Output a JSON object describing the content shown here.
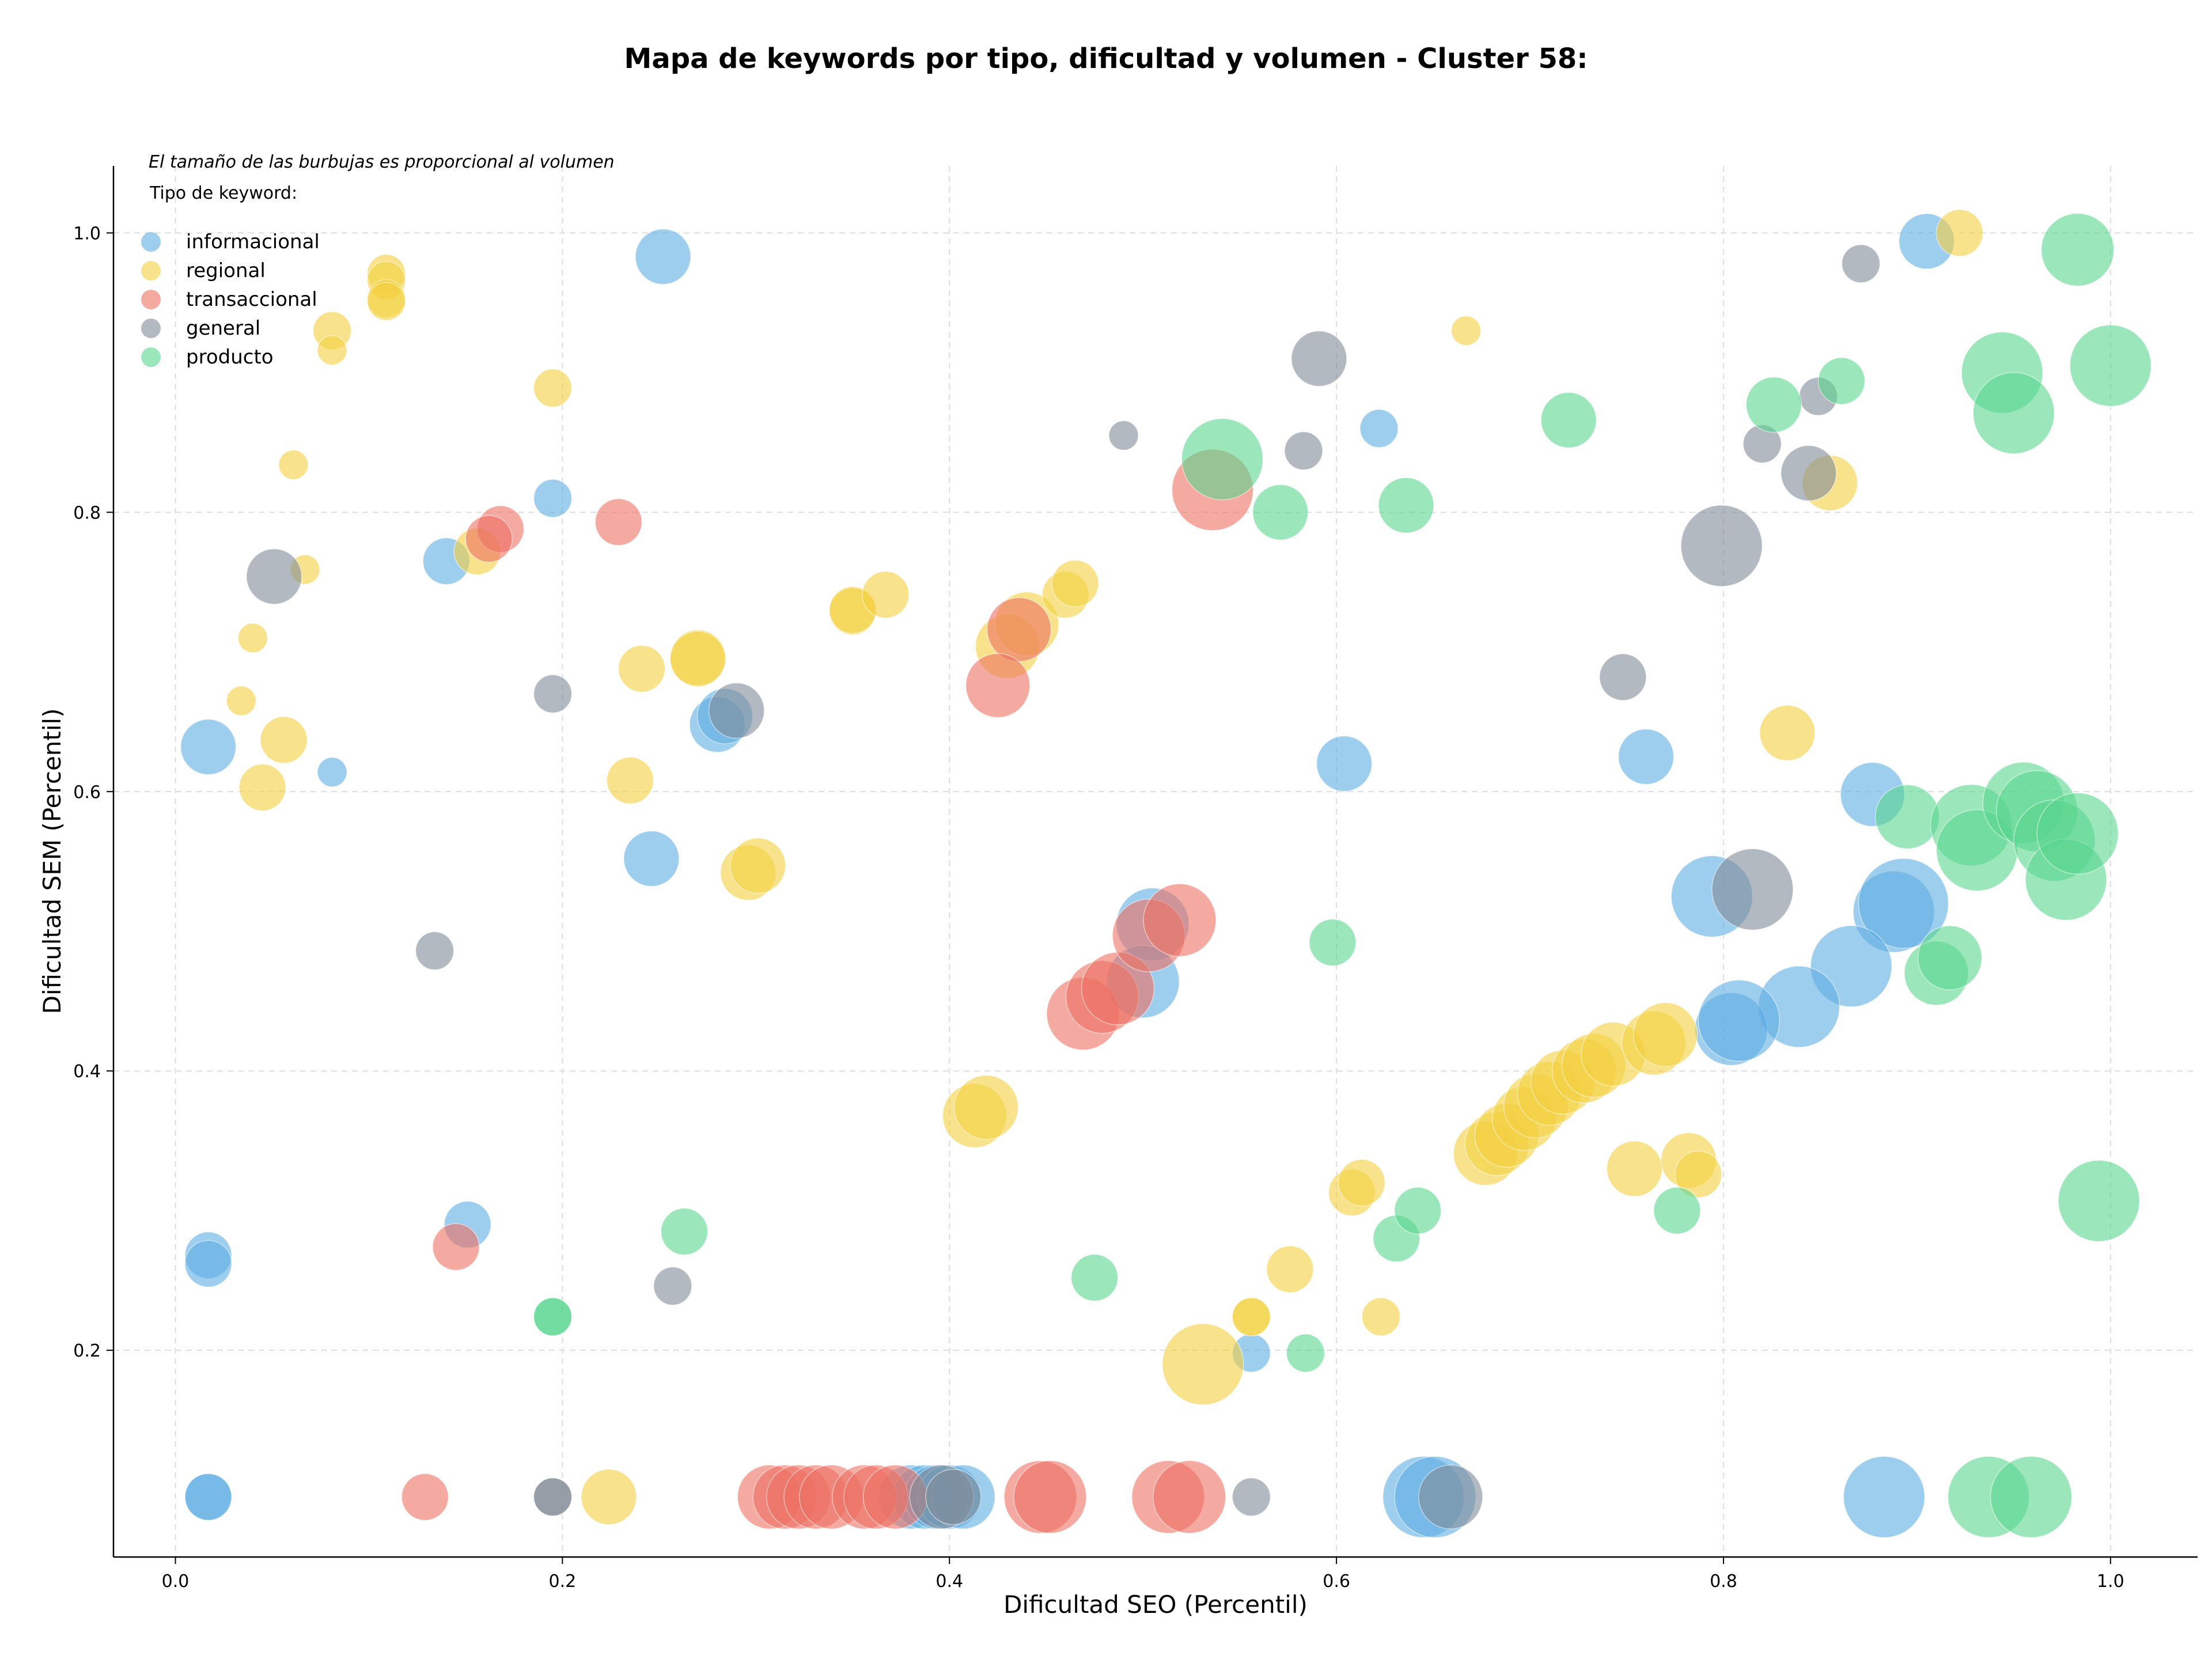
{
  "chart_data": {
    "type": "scatter",
    "title": "Mapa de keywords por tipo, dificultad y volumen - Cluster 58:",
    "xlabel": "Dificultad SEO (Percentil)",
    "ylabel": "Dificultad SEM (Percentil)",
    "xlim": [
      -0.032,
      1.045
    ],
    "ylim": [
      0.052,
      1.048
    ],
    "xticks": [
      0.0,
      0.2,
      0.4,
      0.6,
      0.8,
      1.0
    ],
    "yticks": [
      0.2,
      0.4,
      0.6,
      0.8,
      1.0
    ],
    "tick_labels_x": [
      "0.0",
      "0.2",
      "0.4",
      "0.6",
      "0.8",
      "1.0"
    ],
    "tick_labels_y": [
      "0.2",
      "0.4",
      "0.6",
      "0.8",
      "1.0"
    ],
    "grid": true,
    "note": "El tamaño de las burbujas es proporcional al volumen",
    "legend": {
      "title": "Tipo de keyword:",
      "placement": "top-left"
    },
    "series": [
      {
        "name": "informacional",
        "color": "#5DADE2",
        "points": [
          {
            "x": 0.252,
            "y": 0.983,
            "s": 4
          },
          {
            "x": 0.905,
            "y": 0.994,
            "s": 4
          },
          {
            "x": 0.622,
            "y": 0.86,
            "s": 2
          },
          {
            "x": 0.195,
            "y": 0.81,
            "s": 2
          },
          {
            "x": 0.14,
            "y": 0.765,
            "s": 3
          },
          {
            "x": 0.017,
            "y": 0.632,
            "s": 4
          },
          {
            "x": 0.081,
            "y": 0.614,
            "s": 1
          },
          {
            "x": 0.28,
            "y": 0.648,
            "s": 4
          },
          {
            "x": 0.284,
            "y": 0.654,
            "s": 4
          },
          {
            "x": 0.604,
            "y": 0.62,
            "s": 4
          },
          {
            "x": 0.76,
            "y": 0.625,
            "s": 4
          },
          {
            "x": 0.877,
            "y": 0.598,
            "s": 5
          },
          {
            "x": 0.246,
            "y": 0.552,
            "s": 4
          },
          {
            "x": 0.794,
            "y": 0.525,
            "s": 7
          },
          {
            "x": 0.888,
            "y": 0.514,
            "s": 7
          },
          {
            "x": 0.893,
            "y": 0.52,
            "s": 8
          },
          {
            "x": 0.866,
            "y": 0.475,
            "s": 7
          },
          {
            "x": 0.839,
            "y": 0.446,
            "s": 7
          },
          {
            "x": 0.804,
            "y": 0.43,
            "s": 6
          },
          {
            "x": 0.808,
            "y": 0.436,
            "s": 7
          },
          {
            "x": 0.505,
            "y": 0.505,
            "s": 6
          },
          {
            "x": 0.5,
            "y": 0.464,
            "s": 6
          },
          {
            "x": 0.017,
            "y": 0.268,
            "s": 3
          },
          {
            "x": 0.017,
            "y": 0.262,
            "s": 3
          },
          {
            "x": 0.151,
            "y": 0.29,
            "s": 3
          },
          {
            "x": 0.556,
            "y": 0.198,
            "s": 2
          },
          {
            "x": 0.017,
            "y": 0.095,
            "s": 3
          },
          {
            "x": 0.017,
            "y": 0.095,
            "s": 3
          },
          {
            "x": 0.38,
            "y": 0.095,
            "s": 5
          },
          {
            "x": 0.387,
            "y": 0.095,
            "s": 5
          },
          {
            "x": 0.393,
            "y": 0.095,
            "s": 5
          },
          {
            "x": 0.4,
            "y": 0.095,
            "s": 5
          },
          {
            "x": 0.407,
            "y": 0.095,
            "s": 5
          },
          {
            "x": 0.645,
            "y": 0.095,
            "s": 7
          },
          {
            "x": 0.651,
            "y": 0.095,
            "s": 7
          },
          {
            "x": 0.883,
            "y": 0.095,
            "s": 7
          }
        ]
      },
      {
        "name": "regional",
        "color": "#F4D03F",
        "points": [
          {
            "x": 0.109,
            "y": 0.971,
            "s": 2
          },
          {
            "x": 0.109,
            "y": 0.966,
            "s": 2
          },
          {
            "x": 0.109,
            "y": 0.953,
            "s": 2
          },
          {
            "x": 0.109,
            "y": 0.951,
            "s": 2
          },
          {
            "x": 0.081,
            "y": 0.93,
            "s": 2
          },
          {
            "x": 0.081,
            "y": 0.916,
            "s": 1
          },
          {
            "x": 0.195,
            "y": 0.889,
            "s": 2
          },
          {
            "x": 0.061,
            "y": 0.834,
            "s": 1
          },
          {
            "x": 0.067,
            "y": 0.759,
            "s": 1
          },
          {
            "x": 0.04,
            "y": 0.71,
            "s": 1
          },
          {
            "x": 0.034,
            "y": 0.665,
            "s": 1
          },
          {
            "x": 0.056,
            "y": 0.637,
            "s": 3
          },
          {
            "x": 0.045,
            "y": 0.603,
            "s": 3
          },
          {
            "x": 0.156,
            "y": 0.772,
            "s": 3
          },
          {
            "x": 0.241,
            "y": 0.688,
            "s": 3
          },
          {
            "x": 0.235,
            "y": 0.608,
            "s": 3
          },
          {
            "x": 0.27,
            "y": 0.696,
            "s": 4
          },
          {
            "x": 0.27,
            "y": 0.695,
            "s": 4
          },
          {
            "x": 0.35,
            "y": 0.729,
            "s": 3
          },
          {
            "x": 0.35,
            "y": 0.73,
            "s": 3
          },
          {
            "x": 0.367,
            "y": 0.741,
            "s": 3
          },
          {
            "x": 0.296,
            "y": 0.542,
            "s": 4
          },
          {
            "x": 0.301,
            "y": 0.547,
            "s": 4
          },
          {
            "x": 0.43,
            "y": 0.704,
            "s": 5
          },
          {
            "x": 0.44,
            "y": 0.72,
            "s": 5
          },
          {
            "x": 0.46,
            "y": 0.741,
            "s": 3
          },
          {
            "x": 0.465,
            "y": 0.749,
            "s": 3
          },
          {
            "x": 0.667,
            "y": 0.93,
            "s": 1
          },
          {
            "x": 0.922,
            "y": 1.0,
            "s": 3
          },
          {
            "x": 0.855,
            "y": 0.821,
            "s": 4
          },
          {
            "x": 0.833,
            "y": 0.642,
            "s": 4
          },
          {
            "x": 0.413,
            "y": 0.368,
            "s": 5
          },
          {
            "x": 0.419,
            "y": 0.374,
            "s": 5
          },
          {
            "x": 0.224,
            "y": 0.095,
            "s": 4
          },
          {
            "x": 0.531,
            "y": 0.19,
            "s": 7
          },
          {
            "x": 0.556,
            "y": 0.224,
            "s": 2
          },
          {
            "x": 0.556,
            "y": 0.224,
            "s": 2
          },
          {
            "x": 0.576,
            "y": 0.258,
            "s": 3
          },
          {
            "x": 0.608,
            "y": 0.313,
            "s": 3
          },
          {
            "x": 0.613,
            "y": 0.32,
            "s": 3
          },
          {
            "x": 0.623,
            "y": 0.224,
            "s": 2
          },
          {
            "x": 0.677,
            "y": 0.341,
            "s": 5
          },
          {
            "x": 0.683,
            "y": 0.348,
            "s": 5
          },
          {
            "x": 0.688,
            "y": 0.354,
            "s": 5
          },
          {
            "x": 0.697,
            "y": 0.366,
            "s": 5
          },
          {
            "x": 0.703,
            "y": 0.375,
            "s": 5
          },
          {
            "x": 0.71,
            "y": 0.384,
            "s": 5
          },
          {
            "x": 0.717,
            "y": 0.392,
            "s": 5
          },
          {
            "x": 0.728,
            "y": 0.4,
            "s": 5
          },
          {
            "x": 0.733,
            "y": 0.404,
            "s": 5
          },
          {
            "x": 0.743,
            "y": 0.412,
            "s": 5
          },
          {
            "x": 0.754,
            "y": 0.33,
            "s": 4
          },
          {
            "x": 0.764,
            "y": 0.42,
            "s": 5
          },
          {
            "x": 0.77,
            "y": 0.426,
            "s": 5
          },
          {
            "x": 0.782,
            "y": 0.336,
            "s": 4
          },
          {
            "x": 0.787,
            "y": 0.326,
            "s": 3
          }
        ]
      },
      {
        "name": "transaccional",
        "color": "#EC7063",
        "points": [
          {
            "x": 0.168,
            "y": 0.788,
            "s": 3
          },
          {
            "x": 0.162,
            "y": 0.781,
            "s": 3
          },
          {
            "x": 0.229,
            "y": 0.793,
            "s": 3
          },
          {
            "x": 0.436,
            "y": 0.716,
            "s": 5
          },
          {
            "x": 0.425,
            "y": 0.676,
            "s": 5
          },
          {
            "x": 0.536,
            "y": 0.816,
            "s": 7
          },
          {
            "x": 0.469,
            "y": 0.441,
            "s": 6
          },
          {
            "x": 0.479,
            "y": 0.453,
            "s": 6
          },
          {
            "x": 0.487,
            "y": 0.459,
            "s": 6
          },
          {
            "x": 0.503,
            "y": 0.497,
            "s": 6
          },
          {
            "x": 0.519,
            "y": 0.508,
            "s": 6
          },
          {
            "x": 0.145,
            "y": 0.274,
            "s": 3
          },
          {
            "x": 0.129,
            "y": 0.095,
            "s": 3
          },
          {
            "x": 0.307,
            "y": 0.095,
            "s": 5
          },
          {
            "x": 0.315,
            "y": 0.095,
            "s": 5
          },
          {
            "x": 0.322,
            "y": 0.095,
            "s": 5
          },
          {
            "x": 0.331,
            "y": 0.095,
            "s": 5
          },
          {
            "x": 0.339,
            "y": 0.095,
            "s": 5
          },
          {
            "x": 0.356,
            "y": 0.095,
            "s": 5
          },
          {
            "x": 0.362,
            "y": 0.095,
            "s": 5
          },
          {
            "x": 0.372,
            "y": 0.095,
            "s": 5
          },
          {
            "x": 0.447,
            "y": 0.095,
            "s": 6
          },
          {
            "x": 0.452,
            "y": 0.095,
            "s": 6
          },
          {
            "x": 0.513,
            "y": 0.095,
            "s": 6
          },
          {
            "x": 0.524,
            "y": 0.095,
            "s": 6
          }
        ]
      },
      {
        "name": "general",
        "color": "#808B96",
        "points": [
          {
            "x": 0.051,
            "y": 0.754,
            "s": 4
          },
          {
            "x": 0.195,
            "y": 0.67,
            "s": 2
          },
          {
            "x": 0.134,
            "y": 0.486,
            "s": 2
          },
          {
            "x": 0.29,
            "y": 0.658,
            "s": 4
          },
          {
            "x": 0.257,
            "y": 0.246,
            "s": 2
          },
          {
            "x": 0.195,
            "y": 0.095,
            "s": 2
          },
          {
            "x": 0.195,
            "y": 0.095,
            "s": 2
          },
          {
            "x": 0.49,
            "y": 0.855,
            "s": 1
          },
          {
            "x": 0.591,
            "y": 0.91,
            "s": 4
          },
          {
            "x": 0.583,
            "y": 0.844,
            "s": 2
          },
          {
            "x": 0.871,
            "y": 0.978,
            "s": 2
          },
          {
            "x": 0.849,
            "y": 0.883,
            "s": 2
          },
          {
            "x": 0.82,
            "y": 0.849,
            "s": 2
          },
          {
            "x": 0.844,
            "y": 0.828,
            "s": 4
          },
          {
            "x": 0.799,
            "y": 0.776,
            "s": 7
          },
          {
            "x": 0.748,
            "y": 0.682,
            "s": 3
          },
          {
            "x": 0.815,
            "y": 0.53,
            "s": 7
          },
          {
            "x": 0.396,
            "y": 0.095,
            "s": 5
          },
          {
            "x": 0.402,
            "y": 0.095,
            "s": 4
          },
          {
            "x": 0.556,
            "y": 0.095,
            "s": 2
          },
          {
            "x": 0.659,
            "y": 0.095,
            "s": 5
          }
        ]
      },
      {
        "name": "producto",
        "color": "#58D68D",
        "points": [
          {
            "x": 0.263,
            "y": 0.285,
            "s": 3
          },
          {
            "x": 0.195,
            "y": 0.224,
            "s": 2
          },
          {
            "x": 0.195,
            "y": 0.224,
            "s": 2
          },
          {
            "x": 0.475,
            "y": 0.252,
            "s": 3
          },
          {
            "x": 0.584,
            "y": 0.198,
            "s": 2
          },
          {
            "x": 0.541,
            "y": 0.838,
            "s": 7
          },
          {
            "x": 0.571,
            "y": 0.8,
            "s": 4
          },
          {
            "x": 0.636,
            "y": 0.805,
            "s": 4
          },
          {
            "x": 0.72,
            "y": 0.866,
            "s": 4
          },
          {
            "x": 0.826,
            "y": 0.877,
            "s": 4
          },
          {
            "x": 0.861,
            "y": 0.894,
            "s": 3
          },
          {
            "x": 0.983,
            "y": 0.988,
            "s": 6
          },
          {
            "x": 0.944,
            "y": 0.9,
            "s": 7
          },
          {
            "x": 0.95,
            "y": 0.871,
            "s": 7
          },
          {
            "x": 1.0,
            "y": 0.905,
            "s": 7
          },
          {
            "x": 0.598,
            "y": 0.492,
            "s": 3
          },
          {
            "x": 0.631,
            "y": 0.28,
            "s": 3
          },
          {
            "x": 0.642,
            "y": 0.3,
            "s": 3
          },
          {
            "x": 0.776,
            "y": 0.3,
            "s": 3
          },
          {
            "x": 0.895,
            "y": 0.582,
            "s": 5
          },
          {
            "x": 0.928,
            "y": 0.576,
            "s": 7
          },
          {
            "x": 0.931,
            "y": 0.558,
            "s": 7
          },
          {
            "x": 0.955,
            "y": 0.592,
            "s": 7
          },
          {
            "x": 0.962,
            "y": 0.586,
            "s": 7
          },
          {
            "x": 0.971,
            "y": 0.565,
            "s": 7
          },
          {
            "x": 0.977,
            "y": 0.537,
            "s": 7
          },
          {
            "x": 0.983,
            "y": 0.57,
            "s": 7
          },
          {
            "x": 0.91,
            "y": 0.47,
            "s": 5
          },
          {
            "x": 0.917,
            "y": 0.481,
            "s": 5
          },
          {
            "x": 0.994,
            "y": 0.307,
            "s": 7
          },
          {
            "x": 0.937,
            "y": 0.095,
            "s": 7
          },
          {
            "x": 0.959,
            "y": 0.095,
            "s": 7
          }
        ]
      }
    ]
  }
}
